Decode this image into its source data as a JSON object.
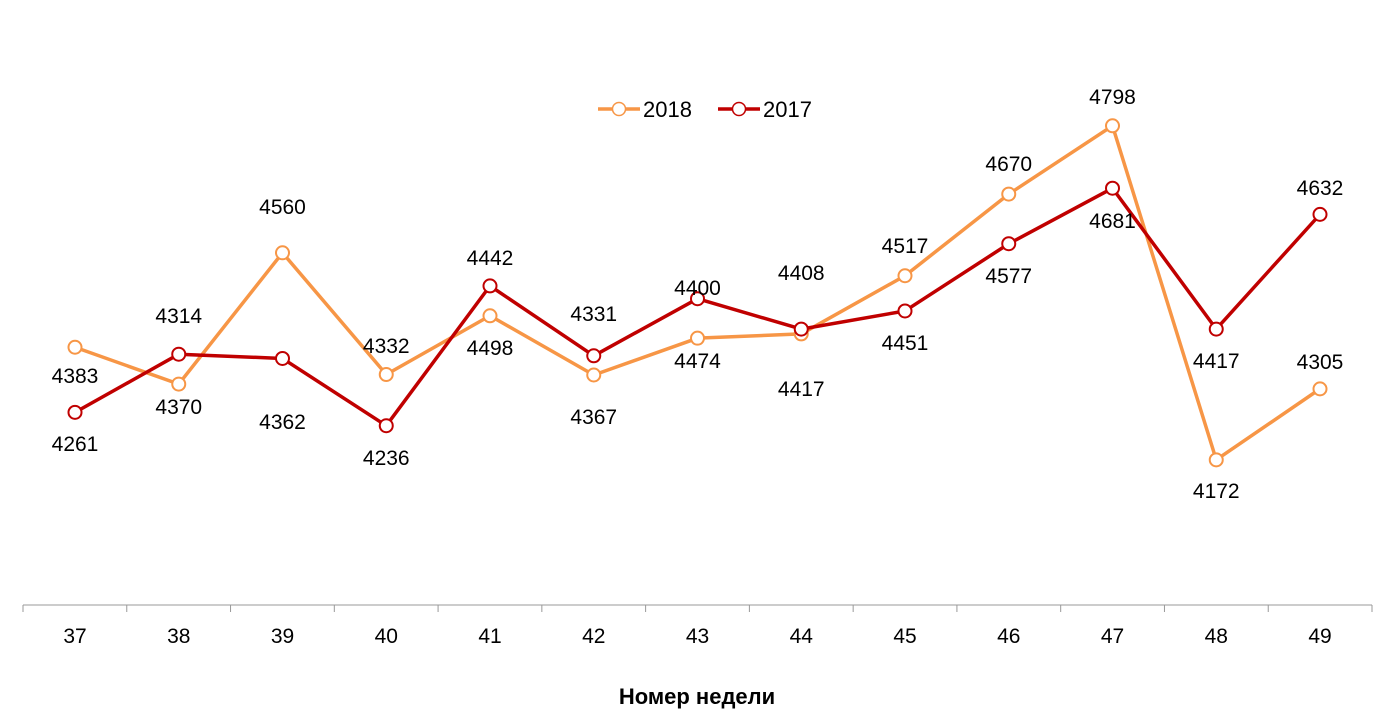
{
  "chart_data": {
    "type": "line",
    "title": "",
    "xlabel": "Номер недели",
    "ylabel": "",
    "categories": [
      "37",
      "38",
      "39",
      "40",
      "41",
      "42",
      "43",
      "44",
      "45",
      "46",
      "47",
      "48",
      "49"
    ],
    "ylim": [
      3900,
      5000
    ],
    "grid": false,
    "legend_position": "top-center",
    "series": [
      {
        "name": "2018",
        "color": "#F79646",
        "values": [
          4383,
          4314,
          4560,
          4332,
          4442,
          4331,
          4400,
          4408,
          4517,
          4670,
          4798,
          4172,
          4305
        ]
      },
      {
        "name": "2017",
        "color": "#C00000",
        "values": [
          4261,
          4370,
          4362,
          4236,
          4498,
          4367,
          4474,
          4417,
          4451,
          4577,
          4681,
          4417,
          4632
        ]
      }
    ]
  }
}
